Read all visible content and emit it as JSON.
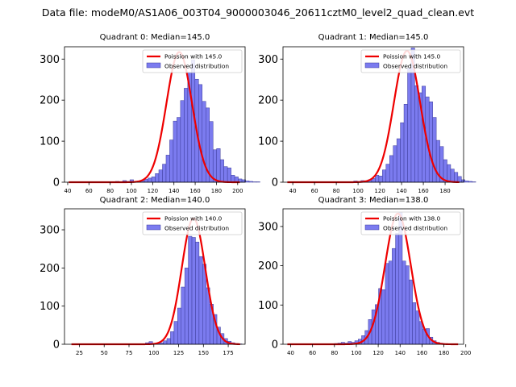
{
  "figure": {
    "title": "Data file: modeM0/AS1A06_003T04_9000003046_20611cztM0_level2_quad_clean.evt"
  },
  "chart_data": [
    {
      "type": "bar",
      "title": "Quadrant 0: Median=145.0",
      "xlim": [
        37,
        207
      ],
      "ylim": [
        0,
        330
      ],
      "xticks": [
        40,
        60,
        80,
        100,
        120,
        140,
        160,
        180,
        200
      ],
      "yticks": [
        0,
        100,
        200,
        300
      ],
      "median": 145.0,
      "bin_width": 3.4,
      "bins_start": 85,
      "counts": [
        2,
        1,
        4,
        2,
        6,
        1,
        3,
        3,
        7,
        10,
        13,
        21,
        30,
        44,
        66,
        103,
        149,
        158,
        199,
        229,
        267,
        298,
        251,
        238,
        197,
        181,
        148,
        79,
        82,
        55,
        38,
        35,
        17,
        13,
        8,
        6,
        3,
        2,
        1,
        1
      ],
      "legend": [
        "Poission with 145.0",
        "Observed distribution"
      ],
      "poisson_scale": 317,
      "curve_x": [
        41,
        202
      ],
      "bar_color": "#7b7bef",
      "curve_color": "#ee0000"
    },
    {
      "type": "bar",
      "title": "Quadrant 1: Median=145.0",
      "xlim": [
        31,
        197
      ],
      "ylim": [
        0,
        330
      ],
      "xticks": [
        40,
        60,
        80,
        100,
        120,
        140,
        160,
        180
      ],
      "yticks": [
        0,
        100,
        200,
        300
      ],
      "median": 145.0,
      "bin_width": 3.3,
      "bins_start": 96,
      "counts": [
        3,
        2,
        4,
        2,
        6,
        9,
        17,
        15,
        30,
        44,
        65,
        89,
        106,
        145,
        190,
        278,
        327,
        235,
        218,
        234,
        208,
        196,
        158,
        102,
        87,
        55,
        43,
        32,
        24,
        14,
        6,
        3,
        2,
        1
      ],
      "legend": [
        "Poission with 145.0",
        "Observed distribution"
      ],
      "poisson_scale": 320,
      "curve_x": [
        35,
        193
      ],
      "bar_color": "#7b7bef",
      "curve_color": "#ee0000"
    },
    {
      "type": "bar",
      "title": "Quadrant 2: Median=140.0",
      "xlim": [
        10,
        192
      ],
      "ylim": [
        0,
        355
      ],
      "xticks": [
        25,
        50,
        75,
        100,
        125,
        150,
        175
      ],
      "yticks": [
        0,
        100,
        200,
        300
      ],
      "median": 140.0,
      "bin_width": 3.6,
      "bins_start": 88,
      "counts": [
        1,
        4,
        7,
        2,
        3,
        4,
        9,
        15,
        33,
        60,
        95,
        150,
        200,
        283,
        280,
        268,
        230,
        210,
        148,
        105,
        78,
        45,
        28,
        15,
        8,
        4,
        2,
        1
      ],
      "legend": [
        "Poission with 140.0",
        "Observed distribution"
      ],
      "poisson_scale": 330,
      "curve_x": [
        17,
        187
      ],
      "bar_color": "#7b7bef",
      "curve_color": "#ee0000"
    },
    {
      "type": "bar",
      "title": "Quadrant 3: Median=138.0",
      "xlim": [
        33,
        198
      ],
      "ylim": [
        0,
        345
      ],
      "xticks": [
        40,
        60,
        80,
        100,
        120,
        140,
        160,
        180,
        200
      ],
      "yticks": [
        0,
        100,
        200,
        300
      ],
      "median": 138.0,
      "bin_width": 3.1,
      "bins_start": 80,
      "counts": [
        2,
        3,
        5,
        3,
        7,
        5,
        9,
        13,
        22,
        35,
        63,
        88,
        101,
        142,
        139,
        206,
        212,
        244,
        283,
        336,
        212,
        200,
        164,
        106,
        85,
        58,
        39,
        40,
        18,
        9,
        5,
        3,
        1
      ],
      "legend": [
        "Poission with 138.0",
        "Observed distribution"
      ],
      "poisson_scale": 333,
      "curve_x": [
        37,
        193
      ],
      "bar_color": "#7b7bef",
      "curve_color": "#ee0000"
    }
  ]
}
